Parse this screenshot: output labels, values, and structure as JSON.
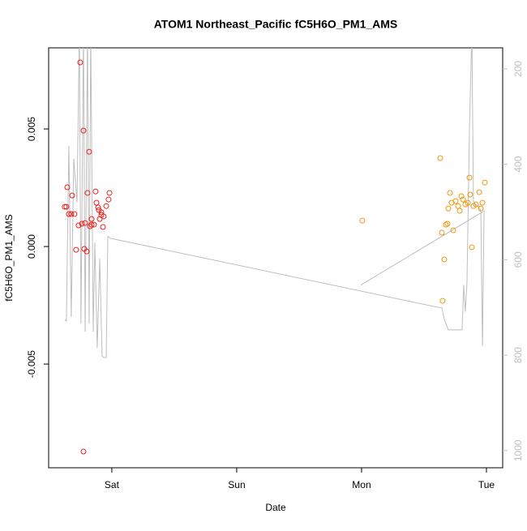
{
  "chart_data": {
    "type": "scatter",
    "title": "ATOM1 Northeast_Pacific fC5H6O_PM1_AMS",
    "x_label": "Date",
    "y_label": "fC5H6O_PM1_AMS",
    "xlim": [
      -0.506,
      3.13
    ],
    "xticks": [
      {
        "value": 0,
        "label": "Sat"
      },
      {
        "value": 1,
        "label": "Sun"
      },
      {
        "value": 2,
        "label": "Mon"
      },
      {
        "value": 3,
        "label": "Tue"
      }
    ],
    "ylim": [
      -0.00941,
      0.00845
    ],
    "yticks": [
      -0.005,
      {
        "value": 0,
        "label": "0.000"
      },
      0.005
    ],
    "y2lim": [
      1036,
      156
    ],
    "y2ticks": [
      200,
      400,
      600,
      800,
      1000
    ],
    "series": [
      {
        "color": "#e8211d",
        "x": [
          -0.377,
          -0.364,
          -0.357,
          -0.344,
          -0.325,
          -0.318,
          -0.299,
          -0.286,
          -0.266,
          -0.253,
          -0.24,
          -0.227,
          -0.221,
          -0.214,
          -0.201,
          -0.195,
          -0.182,
          -0.175,
          -0.162,
          -0.162,
          -0.143,
          -0.13,
          -0.123,
          -0.11,
          -0.104,
          -0.097,
          -0.084,
          -0.084,
          -0.071,
          -0.065,
          -0.045,
          -0.026,
          -0.019,
          -0.227
        ],
        "values": [
          0.00169,
          0.00169,
          0.00252,
          0.00138,
          0.00138,
          0.00217,
          0.00138,
          -0.00014,
          0.0009,
          0.00783,
          0.00097,
          0.00493,
          -0.0001,
          0.001,
          -0.00021,
          0.00228,
          0.00403,
          0.00086,
          0.00117,
          0.00093,
          0.00093,
          0.00234,
          0.00186,
          0.00166,
          0.00155,
          0.00117,
          0.00145,
          0.00134,
          0.00083,
          0.00128,
          0.00172,
          0.002,
          0.00228,
          -0.00872
        ]
      },
      {
        "color": "#f2960c",
        "x": [
          2.006,
          2.63,
          2.643,
          2.649,
          2.662,
          2.675,
          2.688,
          2.695,
          2.708,
          2.721,
          2.734,
          2.753,
          2.773,
          2.786,
          2.799,
          2.812,
          2.831,
          2.851,
          2.864,
          2.87,
          2.883,
          2.896,
          2.916,
          2.942,
          2.955,
          2.968,
          2.987
        ],
        "values": [
          0.0011,
          0.00376,
          0.00059,
          -0.00231,
          -0.00055,
          0.00093,
          0.00097,
          0.00162,
          0.00228,
          0.00186,
          0.00069,
          0.00193,
          0.00172,
          0.00152,
          0.00214,
          0.002,
          0.00179,
          0.00186,
          0.00293,
          0.00221,
          -3e-05,
          0.00172,
          0.00179,
          0.00231,
          0.00162,
          0.00186,
          0.00272
        ]
      },
      {
        "color": "#bebebe",
        "axis": "y2",
        "kind": "line",
        "x": [
          -0.377,
          -0.364,
          -0.344,
          -0.325,
          -0.305,
          -0.279,
          -0.26,
          -0.247,
          -0.227,
          -0.214,
          -0.195,
          -0.182,
          -0.169,
          -0.149,
          -0.136,
          -0.117,
          -0.097,
          -0.078,
          -0.065,
          -0.045,
          -0.032,
          -0.013,
          2.617,
          2.643,
          2.662,
          2.695,
          2.74,
          2.805,
          2.818,
          2.831,
          2.844,
          2.864,
          2.883,
          2.896,
          2.935,
          2.955,
          2.968,
          2.981,
          null,
          1.994,
          2.987
        ],
        "values": [
          725,
          729,
          361,
          720,
          388,
          480,
          120,
          734,
          120,
          751,
          120,
          734,
          120,
          751,
          564,
          785,
          598,
          802,
          805,
          805,
          551,
          555,
          700,
          700,
          725,
          747,
          747,
          747,
          653,
          709,
          649,
          327,
          120,
          480,
          488,
          497,
          781,
          500,
          null,
          653,
          497
        ]
      }
    ]
  }
}
